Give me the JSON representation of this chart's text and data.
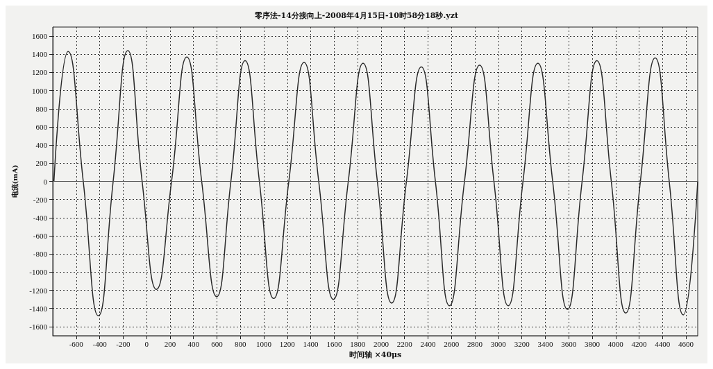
{
  "chart_data": {
    "type": "line",
    "title": "零序法-14分接向上-2008年4月15日-10时58分18秒.yzt",
    "xlabel": "时间轴 ×40μs",
    "ylabel": "电流(mA)",
    "x": [
      -790,
      -669,
      -540,
      -411,
      -285,
      -160,
      -38,
      84,
      213,
      343,
      470,
      598,
      719,
      840,
      962,
      1084,
      1213,
      1343,
      1468,
      1593,
      1720,
      1846,
      1968,
      2090,
      2216,
      2343,
      2463,
      2583,
      2711,
      2840,
      2962,
      3084,
      3210,
      3337,
      3463,
      3589,
      3714,
      3840,
      3963,
      4086,
      4211,
      4337,
      4457,
      4577,
      4700
    ],
    "series": [
      {
        "color": "#2a2a2a",
        "values": [
          0,
          1430,
          0,
          -1480,
          0,
          1440,
          0,
          -1190,
          0,
          1370,
          0,
          -1270,
          0,
          1330,
          0,
          -1290,
          0,
          1310,
          0,
          -1300,
          0,
          1300,
          0,
          -1340,
          0,
          1260,
          0,
          -1370,
          0,
          1280,
          0,
          -1370,
          0,
          1300,
          0,
          -1410,
          0,
          1330,
          0,
          -1450,
          0,
          1360,
          0,
          -1470,
          0
        ]
      }
    ],
    "xlim": [
      -800,
      4700
    ],
    "ylim": [
      -1700,
      1700
    ],
    "xticks": [
      -600,
      -400,
      -200,
      0,
      200,
      400,
      600,
      800,
      1000,
      1200,
      1400,
      1600,
      1800,
      2000,
      2200,
      2400,
      2600,
      2800,
      3000,
      3200,
      3400,
      3600,
      3800,
      4000,
      4200,
      4400,
      4600
    ],
    "yticks": [
      -1600,
      -1400,
      -1200,
      -1000,
      -800,
      -600,
      -400,
      -200,
      0,
      200,
      400,
      600,
      800,
      1000,
      1200,
      1400,
      1600
    ],
    "ref_lines": [
      {
        "axis": "y",
        "value": 0,
        "color": "#555555"
      }
    ],
    "grid": true,
    "marker": "none",
    "line_style": "solid"
  }
}
